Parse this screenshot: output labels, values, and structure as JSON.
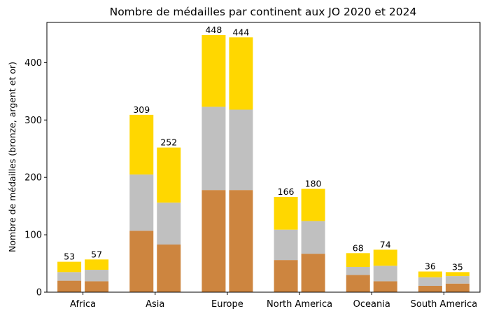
{
  "chart_data": {
    "type": "bar",
    "stacked": true,
    "title": "Nombre de médailles par continent aux JO 2020 et 2024",
    "xlabel": "",
    "ylabel": "Nombre de médailles (bronze, argent et or)",
    "ylim": [
      0,
      470
    ],
    "yticks": [
      0,
      100,
      200,
      300,
      400
    ],
    "grid": false,
    "categories": [
      "Africa",
      "Asia",
      "Europe",
      "North America",
      "Oceania",
      "South America"
    ],
    "bars_per_category": [
      "2020",
      "2024"
    ],
    "series": [
      {
        "color": "#cd853f",
        "values_2020": [
          20,
          107,
          178,
          56,
          30,
          11
        ],
        "values_2024": [
          19,
          83,
          178,
          67,
          19,
          15
        ]
      },
      {
        "color": "#c0c0c0",
        "values_2020": [
          15,
          98,
          145,
          53,
          14,
          15
        ],
        "values_2024": [
          20,
          73,
          140,
          57,
          27,
          13
        ]
      },
      {
        "color": "#ffd700",
        "values_2020": [
          18,
          104,
          125,
          57,
          24,
          10
        ],
        "values_2024": [
          18,
          96,
          126,
          56,
          28,
          7
        ]
      }
    ],
    "totals_2020": [
      53,
      309,
      448,
      166,
      68,
      36
    ],
    "totals_2024": [
      57,
      252,
      444,
      180,
      74,
      35
    ]
  }
}
